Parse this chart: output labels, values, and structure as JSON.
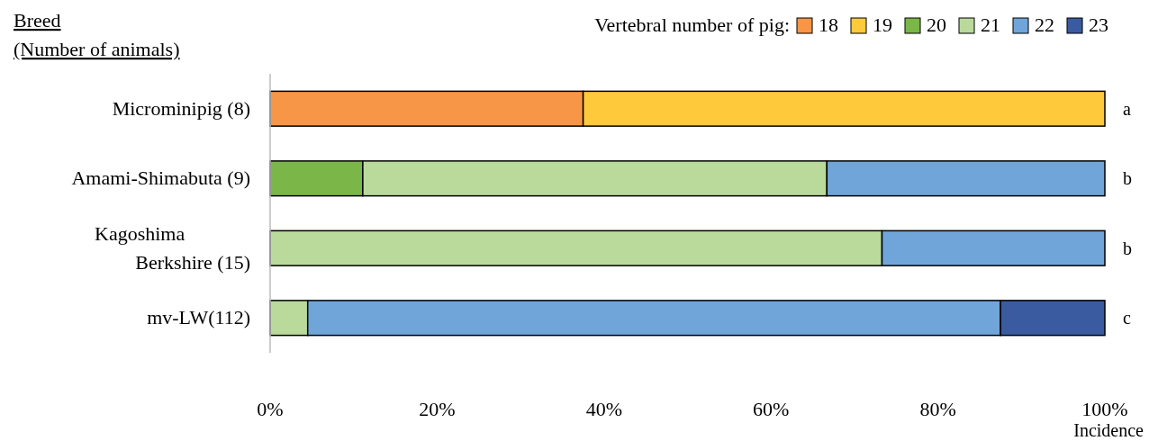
{
  "chart_data": {
    "type": "bar",
    "orientation": "horizontal",
    "stacked": true,
    "ylabel": "Breed\n(Number of animals)",
    "xlabel": "Incidence",
    "legend_title": "Vertebral number of pig:",
    "legend": "top right",
    "categories": [
      "Microminipig (8)",
      "Amami-Shimabuta (9)",
      "Kagoshima Berkshire (15)",
      "mv-LW(112)"
    ],
    "series": [
      {
        "name": "18",
        "color": "#f79646",
        "values": [
          37.5,
          null,
          null,
          null
        ]
      },
      {
        "name": "19",
        "color": "#ffc93c",
        "values": [
          62.5,
          null,
          null,
          null
        ]
      },
      {
        "name": "20",
        "color": "#7ab648",
        "values": [
          null,
          11.1,
          null,
          null
        ]
      },
      {
        "name": "21",
        "color": "#b9da9b",
        "values": [
          null,
          55.6,
          73.3,
          4.5
        ]
      },
      {
        "name": "22",
        "color": "#6fa5d9",
        "values": [
          null,
          33.3,
          26.7,
          83.0
        ]
      },
      {
        "name": "23",
        "color": "#3a5ba0",
        "values": [
          null,
          null,
          null,
          12.5
        ]
      }
    ],
    "xlim": [
      0,
      100
    ],
    "xticks": [
      {
        "value": 0,
        "label": "0%"
      },
      {
        "value": 20,
        "label": "20%"
      },
      {
        "value": 40,
        "label": "40%"
      },
      {
        "value": 60,
        "label": "60%"
      },
      {
        "value": 80,
        "label": "80%"
      },
      {
        "value": 100,
        "label": "100%"
      }
    ],
    "annotations": [
      "a",
      "b",
      "b",
      "c"
    ]
  }
}
